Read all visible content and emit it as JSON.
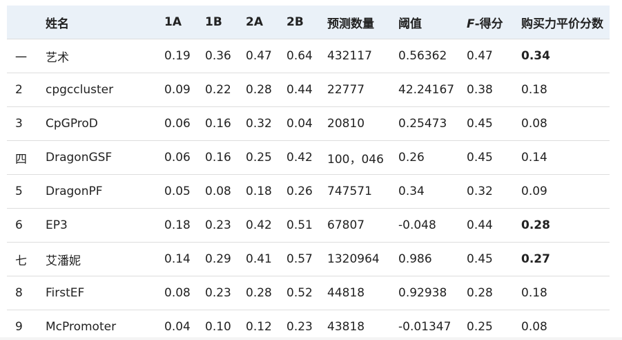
{
  "table": {
    "headers": {
      "idx": "",
      "name": "姓名",
      "c1a": "1A",
      "c1b": "1B",
      "c2a": "2A",
      "c2b": "2B",
      "pred": "预测数量",
      "thr": "阈值",
      "f_letter": "F",
      "f_rest": "-得分",
      "ppp": "购买力平价分数"
    },
    "rows": [
      {
        "idx": "一",
        "name": "艺术",
        "c1a": "0.19",
        "c1b": "0.36",
        "c2a": "0.47",
        "c2b": "0.64",
        "pred": "432117",
        "thr": "0.56362",
        "f": "0.47",
        "ppp": "0.34",
        "ppp_bold": true
      },
      {
        "idx": "2",
        "name": "cpgccluster",
        "c1a": "0.09",
        "c1b": "0.22",
        "c2a": "0.28",
        "c2b": "0.44",
        "pred": "22777",
        "thr": "42.24167",
        "f": "0.38",
        "ppp": "0.18",
        "ppp_bold": false
      },
      {
        "idx": "3",
        "name": "CpGProD",
        "c1a": "0.06",
        "c1b": "0.16",
        "c2a": "0.32",
        "c2b": "0.04",
        "pred": "20810",
        "thr": "0.25473",
        "f": "0.45",
        "ppp": "0.08",
        "ppp_bold": false
      },
      {
        "idx": "四",
        "name": "DragonGSF",
        "c1a": "0.06",
        "c1b": "0.16",
        "c2a": "0.25",
        "c2b": "0.42",
        "pred": "100，046",
        "thr": "0.26",
        "f": "0.45",
        "ppp": "0.14",
        "ppp_bold": false
      },
      {
        "idx": "5",
        "name": "DragonPF",
        "c1a": "0.05",
        "c1b": "0.08",
        "c2a": "0.18",
        "c2b": "0.26",
        "pred": "747571",
        "thr": "0.34",
        "f": "0.32",
        "ppp": "0.09",
        "ppp_bold": false
      },
      {
        "idx": "6",
        "name": "EP3",
        "c1a": "0.18",
        "c1b": "0.23",
        "c2a": "0.42",
        "c2b": "0.51",
        "pred": "67807",
        "thr": "-0.048",
        "f": "0.44",
        "ppp": "0.28",
        "ppp_bold": true
      },
      {
        "idx": "七",
        "name": "艾潘妮",
        "c1a": "0.14",
        "c1b": "0.29",
        "c2a": "0.41",
        "c2b": "0.57",
        "pred": "1320964",
        "thr": "0.986",
        "f": "0.45",
        "ppp": "0.27",
        "ppp_bold": true
      },
      {
        "idx": "8",
        "name": "FirstEF",
        "c1a": "0.08",
        "c1b": "0.23",
        "c2a": "0.28",
        "c2b": "0.52",
        "pred": "44818",
        "thr": "0.92938",
        "f": "0.28",
        "ppp": "0.18",
        "ppp_bold": false
      },
      {
        "idx": "9",
        "name": "McPromoter",
        "c1a": "0.04",
        "c1b": "0.10",
        "c2a": "0.12",
        "c2b": "0.23",
        "pred": "43818",
        "thr": "-0.01347",
        "f": "0.25",
        "ppp": "0.08",
        "ppp_bold": false
      }
    ]
  }
}
